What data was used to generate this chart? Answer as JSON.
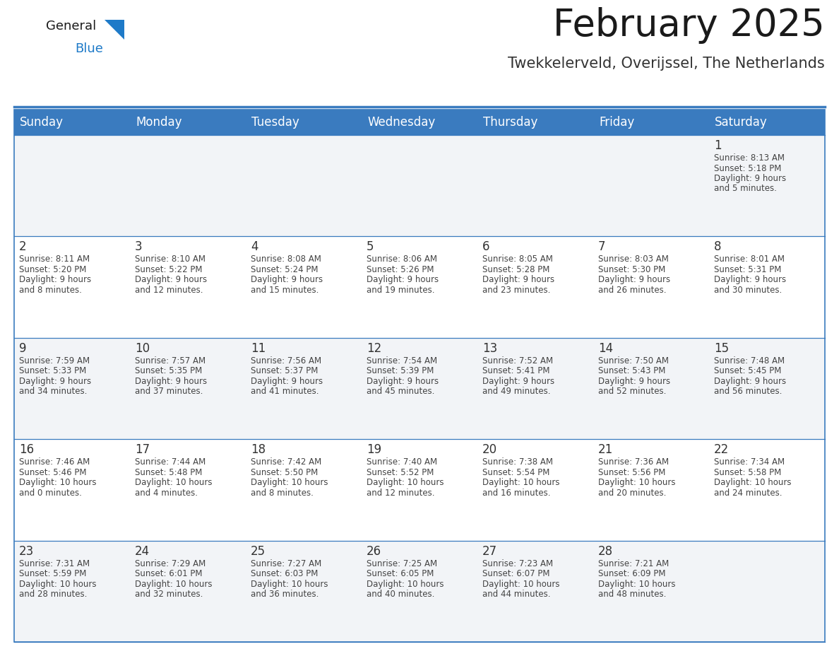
{
  "title": "February 2025",
  "subtitle": "Twekkelerveld, Overijssel, The Netherlands",
  "header_bg": "#3a7bbf",
  "header_text_color": "#ffffff",
  "cell_bg_odd": "#f2f4f7",
  "cell_bg_even": "#ffffff",
  "text_color": "#444444",
  "day_number_color": "#333333",
  "border_color": "#3a7bbf",
  "line_color": "#3a7bbf",
  "days_of_week": [
    "Sunday",
    "Monday",
    "Tuesday",
    "Wednesday",
    "Thursday",
    "Friday",
    "Saturday"
  ],
  "calendar_data": [
    [
      null,
      null,
      null,
      null,
      null,
      null,
      {
        "day": 1,
        "sunrise": "8:13 AM",
        "sunset": "5:18 PM",
        "daylight": "9 hours and 5 minutes"
      }
    ],
    [
      {
        "day": 2,
        "sunrise": "8:11 AM",
        "sunset": "5:20 PM",
        "daylight": "9 hours and 8 minutes"
      },
      {
        "day": 3,
        "sunrise": "8:10 AM",
        "sunset": "5:22 PM",
        "daylight": "9 hours and 12 minutes"
      },
      {
        "day": 4,
        "sunrise": "8:08 AM",
        "sunset": "5:24 PM",
        "daylight": "9 hours and 15 minutes"
      },
      {
        "day": 5,
        "sunrise": "8:06 AM",
        "sunset": "5:26 PM",
        "daylight": "9 hours and 19 minutes"
      },
      {
        "day": 6,
        "sunrise": "8:05 AM",
        "sunset": "5:28 PM",
        "daylight": "9 hours and 23 minutes"
      },
      {
        "day": 7,
        "sunrise": "8:03 AM",
        "sunset": "5:30 PM",
        "daylight": "9 hours and 26 minutes"
      },
      {
        "day": 8,
        "sunrise": "8:01 AM",
        "sunset": "5:31 PM",
        "daylight": "9 hours and 30 minutes"
      }
    ],
    [
      {
        "day": 9,
        "sunrise": "7:59 AM",
        "sunset": "5:33 PM",
        "daylight": "9 hours and 34 minutes"
      },
      {
        "day": 10,
        "sunrise": "7:57 AM",
        "sunset": "5:35 PM",
        "daylight": "9 hours and 37 minutes"
      },
      {
        "day": 11,
        "sunrise": "7:56 AM",
        "sunset": "5:37 PM",
        "daylight": "9 hours and 41 minutes"
      },
      {
        "day": 12,
        "sunrise": "7:54 AM",
        "sunset": "5:39 PM",
        "daylight": "9 hours and 45 minutes"
      },
      {
        "day": 13,
        "sunrise": "7:52 AM",
        "sunset": "5:41 PM",
        "daylight": "9 hours and 49 minutes"
      },
      {
        "day": 14,
        "sunrise": "7:50 AM",
        "sunset": "5:43 PM",
        "daylight": "9 hours and 52 minutes"
      },
      {
        "day": 15,
        "sunrise": "7:48 AM",
        "sunset": "5:45 PM",
        "daylight": "9 hours and 56 minutes"
      }
    ],
    [
      {
        "day": 16,
        "sunrise": "7:46 AM",
        "sunset": "5:46 PM",
        "daylight": "10 hours and 0 minutes"
      },
      {
        "day": 17,
        "sunrise": "7:44 AM",
        "sunset": "5:48 PM",
        "daylight": "10 hours and 4 minutes"
      },
      {
        "day": 18,
        "sunrise": "7:42 AM",
        "sunset": "5:50 PM",
        "daylight": "10 hours and 8 minutes"
      },
      {
        "day": 19,
        "sunrise": "7:40 AM",
        "sunset": "5:52 PM",
        "daylight": "10 hours and 12 minutes"
      },
      {
        "day": 20,
        "sunrise": "7:38 AM",
        "sunset": "5:54 PM",
        "daylight": "10 hours and 16 minutes"
      },
      {
        "day": 21,
        "sunrise": "7:36 AM",
        "sunset": "5:56 PM",
        "daylight": "10 hours and 20 minutes"
      },
      {
        "day": 22,
        "sunrise": "7:34 AM",
        "sunset": "5:58 PM",
        "daylight": "10 hours and 24 minutes"
      }
    ],
    [
      {
        "day": 23,
        "sunrise": "7:31 AM",
        "sunset": "5:59 PM",
        "daylight": "10 hours and 28 minutes"
      },
      {
        "day": 24,
        "sunrise": "7:29 AM",
        "sunset": "6:01 PM",
        "daylight": "10 hours and 32 minutes"
      },
      {
        "day": 25,
        "sunrise": "7:27 AM",
        "sunset": "6:03 PM",
        "daylight": "10 hours and 36 minutes"
      },
      {
        "day": 26,
        "sunrise": "7:25 AM",
        "sunset": "6:05 PM",
        "daylight": "10 hours and 40 minutes"
      },
      {
        "day": 27,
        "sunrise": "7:23 AM",
        "sunset": "6:07 PM",
        "daylight": "10 hours and 44 minutes"
      },
      {
        "day": 28,
        "sunrise": "7:21 AM",
        "sunset": "6:09 PM",
        "daylight": "10 hours and 48 minutes"
      },
      null
    ]
  ],
  "title_fontsize": 38,
  "subtitle_fontsize": 15,
  "header_fontsize": 12,
  "day_number_fontsize": 12,
  "cell_text_fontsize": 8.5,
  "logo_general_fontsize": 13,
  "logo_blue_fontsize": 13
}
